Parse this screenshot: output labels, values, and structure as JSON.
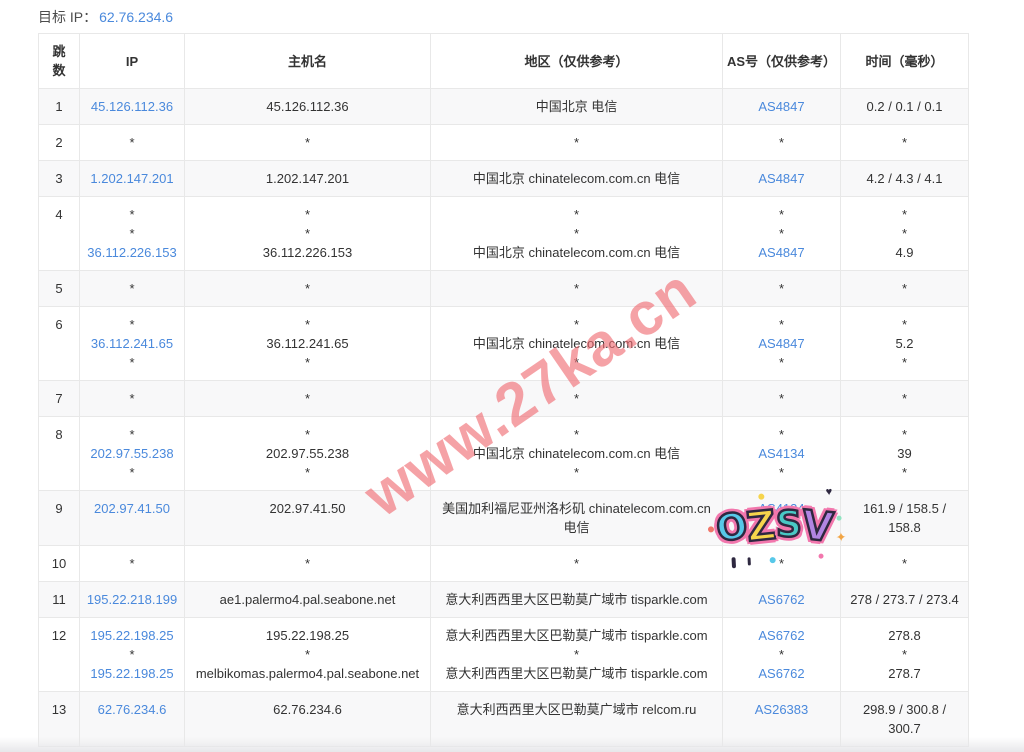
{
  "header": {
    "target_label": "目标 IP：",
    "target_ip": "62.76.234.6"
  },
  "table": {
    "columns": [
      "跳数",
      "IP",
      "主机名",
      "地区（仅供参考）",
      "AS号（仅供参考）",
      "时间（毫秒）"
    ],
    "column_keys": [
      "hop",
      "ip",
      "host",
      "region",
      "as",
      "time"
    ],
    "rows": [
      {
        "hop": "1",
        "ip": [
          "45.126.112.36"
        ],
        "host": [
          "45.126.112.36"
        ],
        "region": [
          "中国北京 电信"
        ],
        "as": [
          "AS4847"
        ],
        "time": [
          "0.2 / 0.1 / 0.1"
        ]
      },
      {
        "hop": "2",
        "ip": [
          "*"
        ],
        "host": [
          "*"
        ],
        "region": [
          "*"
        ],
        "as": [
          "*"
        ],
        "time": [
          "*"
        ]
      },
      {
        "hop": "3",
        "ip": [
          "1.202.147.201"
        ],
        "host": [
          "1.202.147.201"
        ],
        "region": [
          "中国北京 chinatelecom.com.cn 电信"
        ],
        "as": [
          "AS4847"
        ],
        "time": [
          "4.2 / 4.3 / 4.1"
        ]
      },
      {
        "hop": "4",
        "ip": [
          "*",
          "*",
          "36.112.226.153"
        ],
        "host": [
          "*",
          "*",
          "36.112.226.153"
        ],
        "region": [
          "*",
          "*",
          "中国北京 chinatelecom.com.cn 电信"
        ],
        "as": [
          "*",
          "*",
          "AS4847"
        ],
        "time": [
          "*",
          "*",
          "4.9"
        ]
      },
      {
        "hop": "5",
        "ip": [
          "*"
        ],
        "host": [
          "*"
        ],
        "region": [
          "*"
        ],
        "as": [
          "*"
        ],
        "time": [
          "*"
        ]
      },
      {
        "hop": "6",
        "ip": [
          "*",
          "36.112.241.65",
          "*"
        ],
        "host": [
          "*",
          "36.112.241.65",
          "*"
        ],
        "region": [
          "*",
          "中国北京 chinatelecom.com.cn 电信",
          "*"
        ],
        "as": [
          "*",
          "AS4847",
          "*"
        ],
        "time": [
          "*",
          "5.2",
          "*"
        ]
      },
      {
        "hop": "7",
        "ip": [
          "*"
        ],
        "host": [
          "*"
        ],
        "region": [
          "*"
        ],
        "as": [
          "*"
        ],
        "time": [
          "*"
        ]
      },
      {
        "hop": "8",
        "ip": [
          "*",
          "202.97.55.238",
          "*"
        ],
        "host": [
          "*",
          "202.97.55.238",
          "*"
        ],
        "region": [
          "*",
          "中国北京 chinatelecom.com.cn 电信",
          "*"
        ],
        "as": [
          "*",
          "AS4134",
          "*"
        ],
        "time": [
          "*",
          "39",
          "*"
        ]
      },
      {
        "hop": "9",
        "ip": [
          "202.97.41.50"
        ],
        "host": [
          "202.97.41.50"
        ],
        "region": [
          "美国加利福尼亚州洛杉矶 chinatelecom.com.cn 电信"
        ],
        "as": [
          "AS4134"
        ],
        "time": [
          "161.9 / 158.5 / 158.8"
        ]
      },
      {
        "hop": "10",
        "ip": [
          "*"
        ],
        "host": [
          "*"
        ],
        "region": [
          "*"
        ],
        "as": [
          "*"
        ],
        "time": [
          "*"
        ]
      },
      {
        "hop": "11",
        "ip": [
          "195.22.218.199"
        ],
        "host": [
          "ae1.palermo4.pal.seabone.net"
        ],
        "region": [
          "意大利西西里大区巴勒莫广域市 tisparkle.com"
        ],
        "as": [
          "AS6762"
        ],
        "time": [
          "278 / 273.7 / 273.4"
        ]
      },
      {
        "hop": "12",
        "ip": [
          "195.22.198.25",
          "*",
          "195.22.198.25"
        ],
        "host": [
          "195.22.198.25",
          "*",
          "melbikomas.palermo4.pal.seabone.net"
        ],
        "region": [
          "意大利西西里大区巴勒莫广域市 tisparkle.com",
          "*",
          "意大利西西里大区巴勒莫广域市 tisparkle.com"
        ],
        "as": [
          "AS6762",
          "*",
          "AS6762"
        ],
        "time": [
          "278.8",
          "*",
          "278.7"
        ]
      },
      {
        "hop": "13",
        "ip": [
          "62.76.234.6"
        ],
        "host": [
          "62.76.234.6"
        ],
        "region": [
          "意大利西西里大区巴勒莫广域市 relcom.ru"
        ],
        "as": [
          "AS26383"
        ],
        "time": [
          "298.9 / 300.8 / 300.7"
        ]
      }
    ]
  },
  "overlays": {
    "watermark_text": "www.27ka.cn",
    "watermark_color": "#f06a71",
    "sticker": {
      "letters": [
        {
          "ch": "O",
          "color": "#57c8e9"
        },
        {
          "ch": "Z",
          "color": "#f6d44c"
        },
        {
          "ch": "S",
          "color": "#49c8c5"
        },
        {
          "ch": "V",
          "color": "#b285e3"
        }
      ],
      "outline_color": "#2e2840",
      "halo_color": "#f277ad",
      "heart_glyph": "♥",
      "sparkle_glyph": "✦"
    }
  },
  "colors": {
    "link": "#4a89dc",
    "text": "#333333",
    "border": "#e8e8e8",
    "stripe": "#f8f8f9"
  }
}
